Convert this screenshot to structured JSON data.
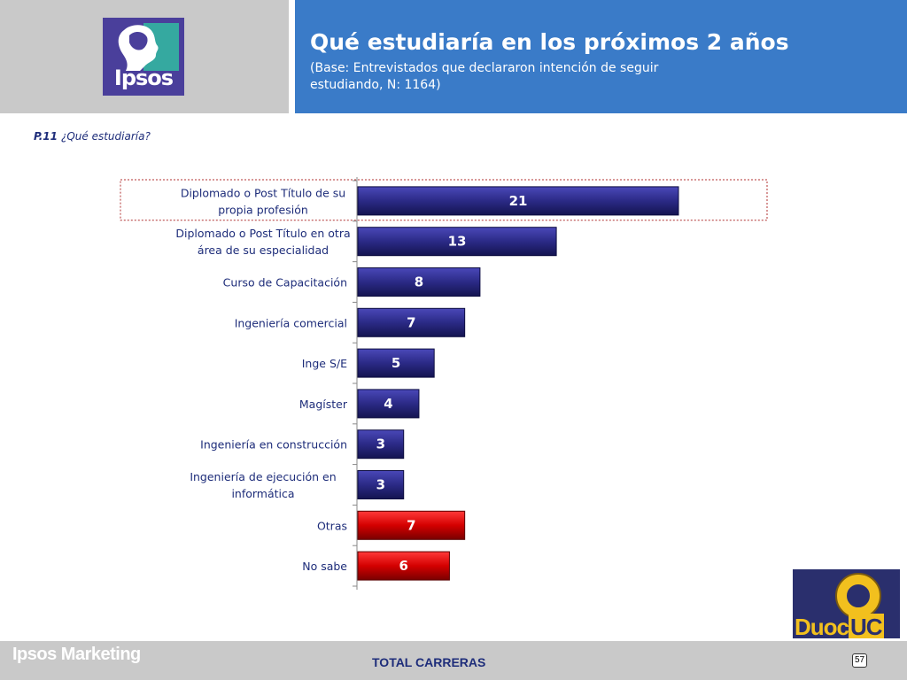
{
  "header": {
    "logo_text": "Ipsos",
    "title": "Qué estudiaría en los próximos 2 años",
    "subtitle": "(Base: Entrevistados que declararon intención de seguir estudiando, N: 1164)"
  },
  "question": {
    "code": "P.11",
    "text": "¿Qué estudiaría?"
  },
  "footer": {
    "brand": "Ipsos Marketing",
    "total": "TOTAL CARRERAS",
    "page_number": "57",
    "partner_logo_text_a": "Duoc",
    "partner_logo_text_b": "UC"
  },
  "colors": {
    "bar_primary": "#2b2a86",
    "bar_highlight": "#d40000",
    "header_blue": "#3a7bc8",
    "header_gray": "#c9c9c9"
  },
  "chart_data": {
    "type": "bar",
    "orientation": "horizontal",
    "categories": [
      [
        "Diplomado o Post Título de su",
        "propia profesión"
      ],
      [
        "Diplomado o Post Título en otra",
        "área de su especialidad"
      ],
      [
        "Curso de Capacitación"
      ],
      [
        "Ingeniería comercial"
      ],
      [
        "Inge S/E"
      ],
      [
        "Magíster"
      ],
      [
        "Ingeniería en construcción"
      ],
      [
        "Ingeniería de ejecución en",
        "informática"
      ],
      [
        "Otras"
      ],
      [
        "No sabe"
      ]
    ],
    "values": [
      21,
      13,
      8,
      7,
      5,
      4,
      3,
      3,
      7,
      6
    ],
    "highlight_colors": [
      "bar_primary",
      "bar_primary",
      "bar_primary",
      "bar_primary",
      "bar_primary",
      "bar_primary",
      "bar_primary",
      "bar_primary",
      "bar_highlight",
      "bar_highlight"
    ],
    "highlighted_category_index": 0,
    "xlim": [
      0,
      30
    ],
    "grid": false,
    "data_labels": true
  }
}
